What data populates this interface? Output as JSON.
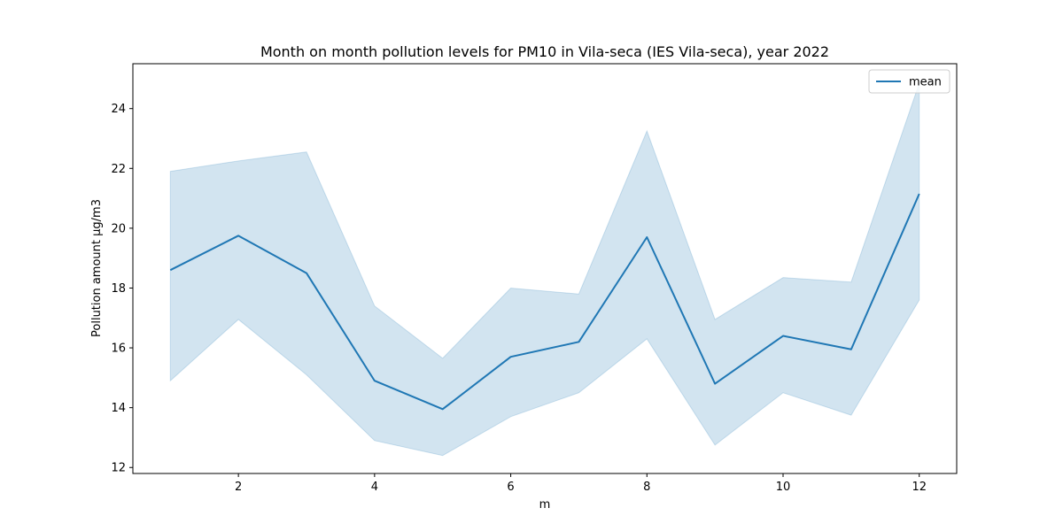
{
  "chart_data": {
    "type": "line",
    "title": "Month on month pollution levels for PM10 in Vila-seca (IES Vila-seca), year 2022",
    "xlabel": "m",
    "ylabel": "Pollution amount µg/m3",
    "x": [
      1,
      2,
      3,
      4,
      5,
      6,
      7,
      8,
      9,
      10,
      11,
      12
    ],
    "series": [
      {
        "name": "mean",
        "color": "#1f77b4",
        "values": [
          18.6,
          19.75,
          18.5,
          14.9,
          13.95,
          15.7,
          16.2,
          19.7,
          14.8,
          16.4,
          15.95,
          21.15
        ],
        "ci_upper": [
          21.9,
          22.25,
          22.55,
          17.4,
          15.65,
          18.0,
          17.8,
          23.25,
          16.95,
          18.35,
          18.2,
          24.85
        ],
        "ci_lower": [
          14.9,
          16.95,
          15.1,
          12.9,
          12.4,
          13.7,
          14.5,
          16.3,
          12.75,
          14.5,
          13.75,
          17.6
        ]
      }
    ],
    "xlim": [
      0.45,
      12.55
    ],
    "ylim": [
      11.8,
      25.5
    ],
    "xticks": [
      2,
      4,
      6,
      8,
      10,
      12
    ],
    "yticks": [
      12,
      14,
      16,
      18,
      20,
      22,
      24
    ],
    "grid": false,
    "legend": "upper right"
  }
}
